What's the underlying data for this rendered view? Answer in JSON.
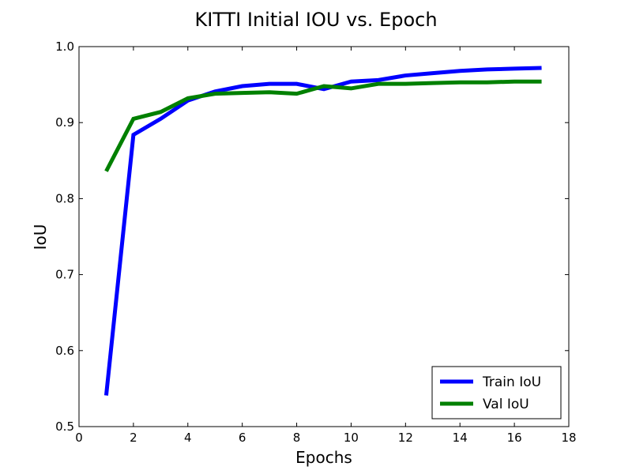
{
  "chart_data": {
    "type": "line",
    "title": "KITTI Initial IOU vs. Epoch",
    "xlabel": "Epochs",
    "ylabel": "IoU",
    "xlim": [
      0,
      18
    ],
    "ylim": [
      0.5,
      1.0
    ],
    "xticks": [
      0,
      2,
      4,
      6,
      8,
      10,
      12,
      14,
      16,
      18
    ],
    "yticks": [
      0.5,
      0.6,
      0.7,
      0.8,
      0.9,
      1.0
    ],
    "ytick_labels": [
      "0.5",
      "0.6",
      "0.7",
      "0.8",
      "0.9",
      "1.0"
    ],
    "grid": false,
    "legend_position": "lower-right",
    "x": [
      1,
      2,
      3,
      4,
      5,
      6,
      7,
      8,
      9,
      10,
      11,
      12,
      13,
      14,
      15,
      16,
      17
    ],
    "series": [
      {
        "name": "Train IoU",
        "color": "#0000ff",
        "values": [
          0.541,
          0.884,
          0.905,
          0.929,
          0.941,
          0.948,
          0.951,
          0.951,
          0.944,
          0.954,
          0.956,
          0.962,
          0.965,
          0.968,
          0.97,
          0.971,
          0.972
        ]
      },
      {
        "name": "Val IoU",
        "color": "#008000",
        "values": [
          0.836,
          0.905,
          0.914,
          0.932,
          0.938,
          0.939,
          0.94,
          0.938,
          0.948,
          0.945,
          0.951,
          0.951,
          0.952,
          0.953,
          0.953,
          0.954,
          0.954
        ]
      }
    ]
  }
}
